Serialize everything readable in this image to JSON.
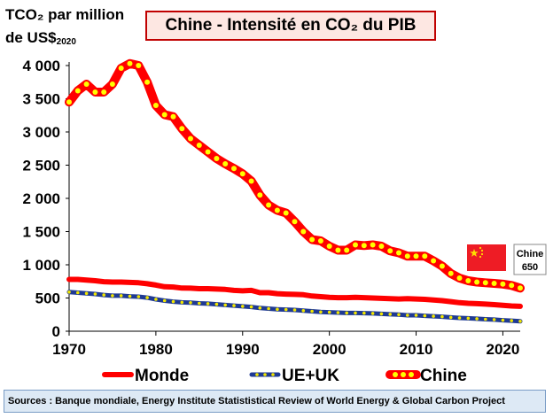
{
  "chart_data": {
    "type": "line",
    "title": "Chine - Intensité en CO₂ du PIB",
    "ylabel_line1": "TCO₂ par million",
    "ylabel_line2": "de US$",
    "ylabel_sub": "2020",
    "xlabel": "",
    "xlim": [
      1970,
      2022
    ],
    "ylim": [
      0,
      4000
    ],
    "xticks": [
      1970,
      1980,
      1990,
      2000,
      2010,
      2020
    ],
    "yticks": [
      0,
      500,
      1000,
      1500,
      2000,
      2500,
      3000,
      3500,
      4000
    ],
    "ytick_labels": [
      "0",
      "500",
      "1 000",
      "1 500",
      "2 000",
      "2 500",
      "3 000",
      "3 500",
      "4 000"
    ],
    "grid": false,
    "legend_position": "bottom",
    "x": [
      1970,
      1971,
      1972,
      1973,
      1974,
      1975,
      1976,
      1977,
      1978,
      1979,
      1980,
      1981,
      1982,
      1983,
      1984,
      1985,
      1986,
      1987,
      1988,
      1989,
      1990,
      1991,
      1992,
      1993,
      1994,
      1995,
      1996,
      1997,
      1998,
      1999,
      2000,
      2001,
      2002,
      2003,
      2004,
      2005,
      2006,
      2007,
      2008,
      2009,
      2010,
      2011,
      2012,
      2013,
      2014,
      2015,
      2016,
      2017,
      2018,
      2019,
      2020,
      2021,
      2022
    ],
    "series": [
      {
        "name": "Monde",
        "color": "#ff0000",
        "values": [
          780,
          780,
          770,
          760,
          745,
          740,
          740,
          735,
          730,
          715,
          695,
          670,
          665,
          650,
          648,
          640,
          640,
          635,
          630,
          615,
          608,
          615,
          580,
          580,
          565,
          558,
          555,
          550,
          530,
          520,
          510,
          505,
          505,
          510,
          505,
          500,
          495,
          490,
          485,
          490,
          485,
          480,
          470,
          460,
          445,
          430,
          420,
          415,
          408,
          400,
          390,
          380,
          375
        ]
      },
      {
        "name": "UE+UK",
        "color": "#1f3a93",
        "values": [
          590,
          580,
          570,
          560,
          545,
          535,
          535,
          525,
          520,
          505,
          480,
          460,
          445,
          435,
          430,
          420,
          415,
          405,
          395,
          385,
          375,
          365,
          350,
          340,
          330,
          325,
          320,
          310,
          300,
          290,
          285,
          280,
          275,
          275,
          272,
          268,
          262,
          255,
          250,
          240,
          240,
          232,
          225,
          218,
          208,
          200,
          195,
          188,
          180,
          175,
          165,
          158,
          150
        ]
      },
      {
        "name": "Chine",
        "color": "#ff0000",
        "values": [
          3450,
          3620,
          3720,
          3600,
          3600,
          3720,
          3960,
          4030,
          4000,
          3750,
          3400,
          3260,
          3230,
          3050,
          2900,
          2800,
          2700,
          2600,
          2520,
          2450,
          2370,
          2260,
          2050,
          1900,
          1820,
          1780,
          1650,
          1500,
          1380,
          1360,
          1280,
          1220,
          1220,
          1300,
          1290,
          1300,
          1280,
          1210,
          1180,
          1130,
          1130,
          1130,
          1060,
          980,
          870,
          800,
          760,
          740,
          730,
          720,
          710,
          690,
          650
        ]
      }
    ],
    "annotation": {
      "label": "Chine",
      "value": "650"
    },
    "source": "Sources : Banque mondiale, Energy Institute Statististical Review of World Energy & Global Carbon Project"
  }
}
